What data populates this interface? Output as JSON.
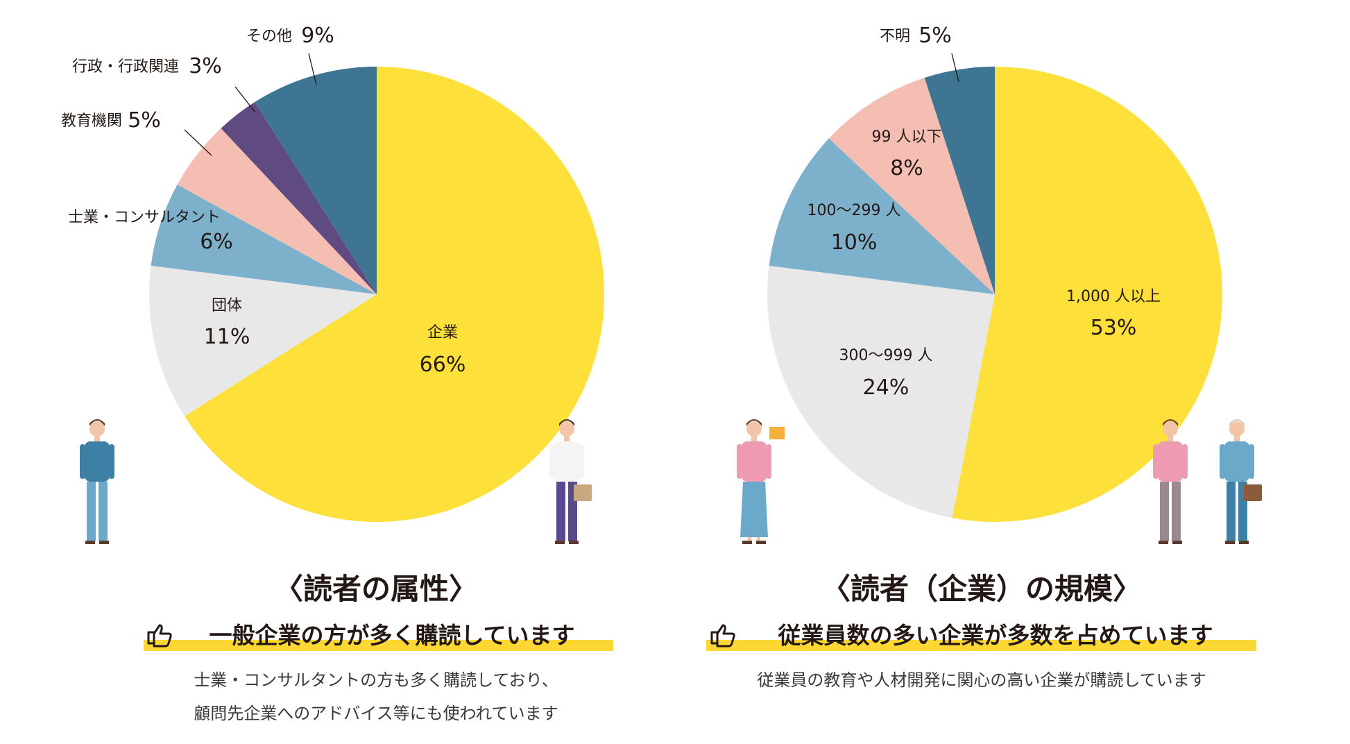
{
  "colors": {
    "yellow": "#FDE13A",
    "gray": "#E8E8E8",
    "lightblue": "#7DB0CB",
    "pink": "#F5BEB3",
    "purple": "#5F4A82",
    "teal": "#3D7593",
    "highlight": "#FDD835"
  },
  "chart_data": [
    {
      "type": "pie",
      "title": "〈読者の属性〉",
      "subtitle": "一般企業の方が多く購読しています",
      "description": [
        "士業・コンサルタントの方も多く購読しており、",
        "顧問先企業へのアドバイス等にも使われています"
      ],
      "slices": [
        {
          "label": "企業",
          "value": 66,
          "pct": "66%",
          "color": "#FDE13A"
        },
        {
          "label": "団体",
          "value": 11,
          "pct": "11%",
          "color": "#E8E8E8"
        },
        {
          "label": "士業・コンサルタント",
          "value": 6,
          "pct": "6%",
          "color": "#7DB0CB"
        },
        {
          "label": "教育機関",
          "value": 5,
          "pct": "5%",
          "color": "#F5BEB3"
        },
        {
          "label": "行政・行政関連",
          "value": 3,
          "pct": "3%",
          "color": "#5F4A82"
        },
        {
          "label": "その他",
          "value": 9,
          "pct": "9%",
          "color": "#3D7593"
        }
      ]
    },
    {
      "type": "pie",
      "title": "〈読者（企業）の規模〉",
      "subtitle": "従業員数の多い企業が多数を占めています",
      "description": [
        "従業員の教育や人材開発に関心の高い企業が購読しています"
      ],
      "slices": [
        {
          "label": "1,000 人以上",
          "value": 53,
          "pct": "53%",
          "color": "#FDE13A"
        },
        {
          "label": "300〜999 人",
          "value": 24,
          "pct": "24%",
          "color": "#E8E8E8"
        },
        {
          "label": "100〜299 人",
          "value": 10,
          "pct": "10%",
          "color": "#7DB0CB"
        },
        {
          "label": "99 人以下",
          "value": 8,
          "pct": "8%",
          "color": "#F5BEB3"
        },
        {
          "label": "不明",
          "value": 5,
          "pct": "5%",
          "color": "#3D7593"
        }
      ]
    }
  ]
}
